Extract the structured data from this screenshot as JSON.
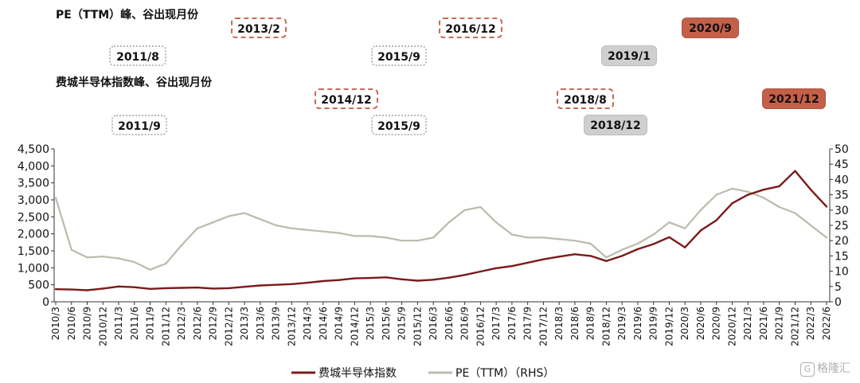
{
  "annotations": {
    "pe_title": "PE（TTM）峰、谷出现月份",
    "idx_title": "费城半导体指数峰、谷出现月份",
    "pe_peaks": [
      {
        "label": "2013/2",
        "style": "dashed"
      },
      {
        "label": "2016/12",
        "style": "dashed"
      },
      {
        "label": "2020/9",
        "style": "solid"
      }
    ],
    "pe_troughs": [
      {
        "label": "2011/8",
        "style": "dotted"
      },
      {
        "label": "2015/9",
        "style": "dotted"
      },
      {
        "label": "2019/1",
        "style": "solid"
      }
    ],
    "idx_peaks": [
      {
        "label": "2014/12",
        "style": "dashed"
      },
      {
        "label": "2018/8",
        "style": "dashed"
      },
      {
        "label": "2021/12",
        "style": "solid"
      }
    ],
    "idx_troughs": [
      {
        "label": "2011/9",
        "style": "dotted"
      },
      {
        "label": "2015/9",
        "style": "dotted"
      },
      {
        "label": "2018/12",
        "style": "solid"
      }
    ]
  },
  "watermark": {
    "icon": "G",
    "text": "格隆汇"
  },
  "colors": {
    "index": "#7b1b1b",
    "pe": "#b9bcad",
    "peak": "#c4604a",
    "trough": "#cfcfcf"
  },
  "chart_data": {
    "type": "line",
    "title": "",
    "xlabel": "",
    "ylabel": "",
    "ylim_left": [
      0,
      4500
    ],
    "ylim_right": [
      0,
      50
    ],
    "y_ticks_left": [
      "0",
      "500",
      "1,000",
      "1,500",
      "2,000",
      "2,500",
      "3,000",
      "3,500",
      "4,000",
      "4,500"
    ],
    "y_ticks_right": [
      "0",
      "5",
      "10",
      "15",
      "20",
      "25",
      "30",
      "35",
      "40",
      "45",
      "50"
    ],
    "x_ticks": [
      "2010/3",
      "2010/6",
      "2010/9",
      "2010/12",
      "2011/3",
      "2011/6",
      "2011/9",
      "2011/12",
      "2012/3",
      "2012/6",
      "2012/9",
      "2012/12",
      "2013/3",
      "2013/6",
      "2013/9",
      "2013/12",
      "2014/3",
      "2014/6",
      "2014/9",
      "2014/12",
      "2015/3",
      "2015/6",
      "2015/9",
      "2015/12",
      "2016/3",
      "2016/6",
      "2016/9",
      "2016/12",
      "2017/3",
      "2017/6",
      "2017/9",
      "2017/12",
      "2018/3",
      "2018/6",
      "2018/9",
      "2018/12",
      "2019/3",
      "2019/6",
      "2019/9",
      "2019/12",
      "2020/3",
      "2020/6",
      "2020/9",
      "2020/12",
      "2021/3",
      "2021/6",
      "2021/9",
      "2021/12",
      "2022/3",
      "2022/6"
    ],
    "legend_position": "bottom",
    "grid": false,
    "series": [
      {
        "name": "费城半导体指数",
        "axis": "left",
        "values": [
          370,
          360,
          340,
          390,
          450,
          430,
          380,
          400,
          410,
          420,
          390,
          400,
          440,
          480,
          500,
          520,
          560,
          610,
          640,
          690,
          700,
          720,
          660,
          620,
          650,
          710,
          790,
          890,
          990,
          1050,
          1150,
          1250,
          1330,
          1400,
          1350,
          1200,
          1350,
          1550,
          1700,
          1900,
          1600,
          2100,
          2400,
          2900,
          3150,
          3300,
          3400,
          3850,
          3300,
          2800
        ]
      },
      {
        "name": "PE（TTM）（RHS）",
        "axis": "right",
        "values": [
          34,
          17,
          14.5,
          14.8,
          14.2,
          13,
          10.5,
          12.5,
          18.5,
          24,
          26,
          28,
          29,
          27,
          25,
          24,
          23.5,
          23,
          22.5,
          21.5,
          21.5,
          21,
          20,
          20,
          21,
          26,
          30,
          31,
          26,
          22,
          21,
          21,
          20.5,
          20,
          19,
          14.5,
          17,
          19,
          22,
          26,
          24,
          30,
          35,
          37,
          36,
          34,
          31,
          29,
          25,
          21
        ]
      }
    ]
  }
}
